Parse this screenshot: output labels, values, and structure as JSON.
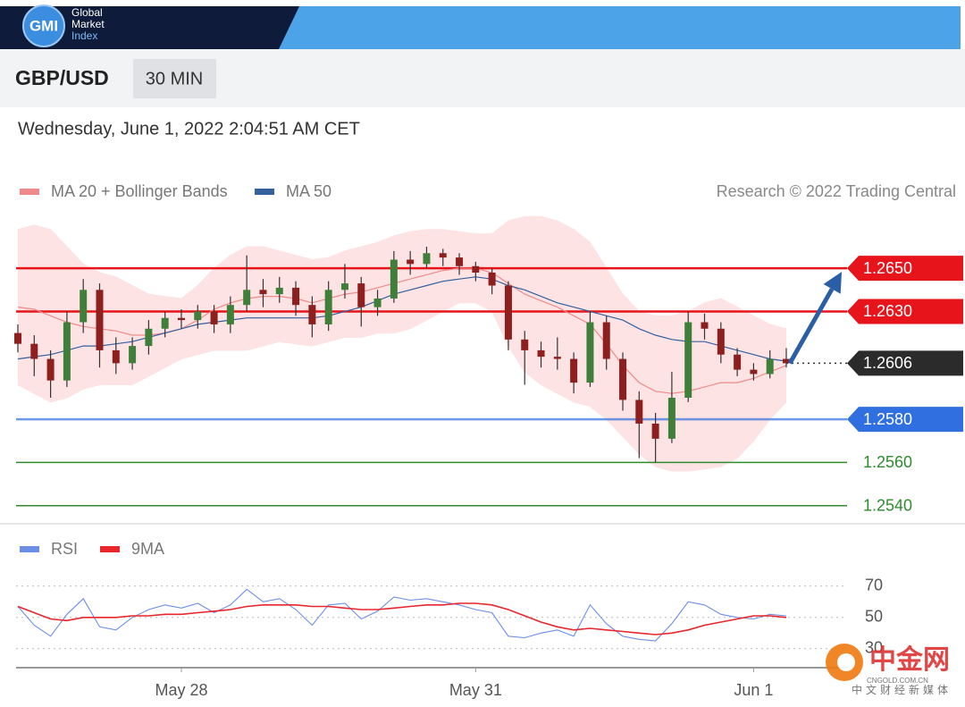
{
  "header": {
    "logo": "GMI",
    "brand_lines": [
      "Global",
      "Market",
      "Index"
    ],
    "symbol": "GBP/USD",
    "timeframe": "30 MIN",
    "timestamp": "Wednesday, June 1, 2022 2:04:51 AM CET",
    "credit": "Research © 2022 Trading Central"
  },
  "chart_data": [
    {
      "type": "candlestick",
      "categories": [
        null,
        null,
        null,
        null,
        null,
        null,
        null,
        null,
        null,
        null,
        "May 28",
        null,
        null,
        null,
        null,
        null,
        null,
        null,
        null,
        null,
        null,
        null,
        null,
        null,
        null,
        null,
        null,
        null,
        "May 31",
        null,
        null,
        null,
        null,
        null,
        null,
        null,
        null,
        null,
        null,
        null,
        null,
        null,
        null,
        null,
        null,
        "Jun 1",
        null,
        null
      ],
      "ohlc": [
        [
          1.262,
          1.2624,
          1.2611,
          1.2615
        ],
        [
          1.2615,
          1.2619,
          1.26,
          1.2608
        ],
        [
          1.2608,
          1.2612,
          1.259,
          1.2598
        ],
        [
          1.2598,
          1.263,
          1.2595,
          1.2625
        ],
        [
          1.2625,
          1.2645,
          1.262,
          1.264
        ],
        [
          1.264,
          1.2643,
          1.2604,
          1.2612
        ],
        [
          1.2612,
          1.2618,
          1.2601,
          1.2606
        ],
        [
          1.2606,
          1.2618,
          1.2603,
          1.2614
        ],
        [
          1.2614,
          1.2626,
          1.261,
          1.2622
        ],
        [
          1.2622,
          1.263,
          1.2618,
          1.2627
        ],
        [
          1.2627,
          1.2631,
          1.2622,
          1.2626
        ],
        [
          1.2626,
          1.2633,
          1.2622,
          1.263
        ],
        [
          1.263,
          1.2633,
          1.262,
          1.2624
        ],
        [
          1.2624,
          1.2637,
          1.262,
          1.2633
        ],
        [
          1.2633,
          1.2656,
          1.263,
          1.264
        ],
        [
          1.264,
          1.2645,
          1.2632,
          1.2638
        ],
        [
          1.2638,
          1.2646,
          1.2634,
          1.2641
        ],
        [
          1.2641,
          1.2644,
          1.2628,
          1.2633
        ],
        [
          1.2633,
          1.2637,
          1.2618,
          1.2624
        ],
        [
          1.2624,
          1.2644,
          1.2621,
          1.264
        ],
        [
          1.264,
          1.2652,
          1.2636,
          1.2643
        ],
        [
          1.2643,
          1.2646,
          1.2623,
          1.2632
        ],
        [
          1.2632,
          1.264,
          1.2628,
          1.2636
        ],
        [
          1.2636,
          1.2658,
          1.2634,
          1.2654
        ],
        [
          1.2654,
          1.2658,
          1.2647,
          1.2652
        ],
        [
          1.2652,
          1.266,
          1.265,
          1.2657
        ],
        [
          1.2657,
          1.2659,
          1.2651,
          1.2655
        ],
        [
          1.2655,
          1.2657,
          1.2647,
          1.2651
        ],
        [
          1.2651,
          1.2653,
          1.2644,
          1.2648
        ],
        [
          1.2648,
          1.265,
          1.2638,
          1.2642
        ],
        [
          1.2642,
          1.2644,
          1.2612,
          1.2617
        ],
        [
          1.2617,
          1.2621,
          1.2596,
          1.2612
        ],
        [
          1.2612,
          1.2616,
          1.2604,
          1.2609
        ],
        [
          1.2609,
          1.2618,
          1.2603,
          1.2608
        ],
        [
          1.2608,
          1.2611,
          1.2592,
          1.2597
        ],
        [
          1.2597,
          1.263,
          1.2595,
          1.2625
        ],
        [
          1.2625,
          1.2628,
          1.2603,
          1.2608
        ],
        [
          1.2608,
          1.2611,
          1.2584,
          1.2589
        ],
        [
          1.2589,
          1.2593,
          1.2562,
          1.2578
        ],
        [
          1.2578,
          1.2583,
          1.256,
          1.2571
        ],
        [
          1.2571,
          1.2602,
          1.2569,
          1.259
        ],
        [
          1.259,
          1.263,
          1.2588,
          1.2625
        ],
        [
          1.2625,
          1.2629,
          1.2617,
          1.2622
        ],
        [
          1.2622,
          1.2625,
          1.2606,
          1.261
        ],
        [
          1.261,
          1.2613,
          1.26,
          1.2603
        ],
        [
          1.2603,
          1.2606,
          1.2598,
          1.2601
        ],
        [
          1.2601,
          1.2612,
          1.2599,
          1.2608
        ],
        [
          1.2608,
          1.2613,
          1.2604,
          1.2606
        ]
      ],
      "up_color": "#3f7f3a",
      "down_color": "#8e1f1f",
      "series": [
        {
          "name": "MA 20 + Bollinger Bands",
          "color": "#f08a8a",
          "band_color": "#fde3e3",
          "values": [
            1.2632,
            1.2631,
            1.2628,
            1.2625,
            1.2623,
            1.2622,
            1.2621,
            1.2619,
            1.2619,
            1.262,
            1.2622,
            1.2626,
            1.2631,
            1.2634,
            1.2636,
            1.2637,
            1.2637,
            1.2636,
            1.2634,
            1.2636,
            1.2638,
            1.2639,
            1.2641,
            1.2643,
            1.2645,
            1.2647,
            1.2649,
            1.265,
            1.265,
            1.2648,
            1.2643,
            1.2638,
            1.2635,
            1.2632,
            1.2628,
            1.2624,
            1.2615,
            1.2605,
            1.2597,
            1.2593,
            1.2592,
            1.2593,
            1.2595,
            1.2597,
            1.2597,
            1.2599,
            1.2602,
            1.2605
          ],
          "upper": [
            1.2668,
            1.267,
            1.2668,
            1.266,
            1.2652,
            1.2648,
            1.2646,
            1.2642,
            1.2638,
            1.2637,
            1.2636,
            1.2642,
            1.265,
            1.2656,
            1.266,
            1.266,
            1.2658,
            1.2656,
            1.2654,
            1.2655,
            1.2658,
            1.266,
            1.2662,
            1.2665,
            1.2667,
            1.2668,
            1.2668,
            1.2667,
            1.2666,
            1.2666,
            1.2672,
            1.2674,
            1.2674,
            1.2672,
            1.2668,
            1.2662,
            1.265,
            1.2638,
            1.263,
            1.2628,
            1.2628,
            1.263,
            1.2634,
            1.2636,
            1.2632,
            1.2628,
            1.2624,
            1.2622
          ],
          "lower": [
            1.2596,
            1.2592,
            1.2588,
            1.259,
            1.2594,
            1.2596,
            1.2596,
            1.2596,
            1.26,
            1.2604,
            1.2608,
            1.261,
            1.2612,
            1.2612,
            1.2612,
            1.2614,
            1.2616,
            1.2615,
            1.2614,
            1.2616,
            1.2618,
            1.2618,
            1.262,
            1.262,
            1.2622,
            1.2626,
            1.263,
            1.2634,
            1.2634,
            1.263,
            1.2614,
            1.2602,
            1.2596,
            1.2592,
            1.2588,
            1.2586,
            1.258,
            1.2572,
            1.2564,
            1.2558,
            1.2556,
            1.2556,
            1.2557,
            1.2558,
            1.2562,
            1.257,
            1.258,
            1.2588
          ]
        },
        {
          "name": "MA 50",
          "color": "#34609e",
          "values": [
            1.2608,
            1.2609,
            1.261,
            1.2612,
            1.2614,
            1.2614,
            1.2615,
            1.2616,
            1.2618,
            1.262,
            1.2622,
            1.2624,
            1.2625,
            1.2626,
            1.2627,
            1.2627,
            1.2627,
            1.2627,
            1.2627,
            1.2628,
            1.263,
            1.2632,
            1.2635,
            1.2638,
            1.264,
            1.2642,
            1.2644,
            1.2645,
            1.2646,
            1.2645,
            1.2642,
            1.264,
            1.2637,
            1.2634,
            1.2632,
            1.263,
            1.2628,
            1.2626,
            1.2622,
            1.2619,
            1.2617,
            1.2616,
            1.2616,
            1.2614,
            1.2612,
            1.261,
            1.2608,
            1.2607
          ]
        }
      ],
      "levels": [
        {
          "price": {
            "value": 1.265,
            "label": "1.2650"
          },
          "kind": "resistance",
          "color": "#e8141b"
        },
        {
          "price": {
            "value": 1.263,
            "label": "1.2630"
          },
          "kind": "resistance",
          "color": "#e8141b"
        },
        {
          "price": {
            "value": 1.2606,
            "label": "1.2606"
          },
          "kind": "current",
          "color": "#2b2b2b"
        },
        {
          "price": {
            "value": 1.258,
            "label": "1.2580"
          },
          "kind": "support",
          "color": "#2f6fe0"
        },
        {
          "price": {
            "value": 1.256,
            "label": "1.2560"
          },
          "kind": "target",
          "color": "#2e8b2e"
        },
        {
          "price": {
            "value": 1.254,
            "label": "1.2540"
          },
          "kind": "target",
          "color": "#2e8b2e"
        }
      ],
      "ylim": [
        1.2532,
        1.2677
      ]
    },
    {
      "type": "line",
      "series": [
        {
          "name": "RSI",
          "color": "#6d8ee6",
          "values": [
            57,
            45,
            38,
            52,
            62,
            44,
            42,
            50,
            55,
            58,
            56,
            59,
            53,
            58,
            68,
            60,
            62,
            55,
            45,
            58,
            59,
            49,
            54,
            63,
            61,
            62,
            60,
            58,
            55,
            53,
            38,
            37,
            40,
            42,
            38,
            58,
            46,
            38,
            36,
            35,
            46,
            60,
            58,
            52,
            50,
            49,
            52,
            51
          ]
        },
        {
          "name": "9MA",
          "color": "#e8262b",
          "values": [
            57,
            53,
            49,
            48,
            50,
            50,
            50,
            51,
            51,
            52,
            52,
            53,
            54,
            55,
            57,
            58,
            58,
            58,
            57,
            57,
            56,
            55,
            55,
            56,
            57,
            58,
            58,
            59,
            59,
            58,
            55,
            51,
            47,
            44,
            42,
            43,
            42,
            41,
            40,
            39,
            40,
            42,
            45,
            47,
            49,
            51,
            51,
            50
          ]
        }
      ],
      "ylim": [
        19,
        79
      ],
      "yticks": [
        30,
        50,
        70
      ],
      "grid": true
    }
  ],
  "watermark": {
    "brand": "中金网",
    "domain": "CNGOLD.COM.CN",
    "slogan": "中文财经新媒体"
  }
}
